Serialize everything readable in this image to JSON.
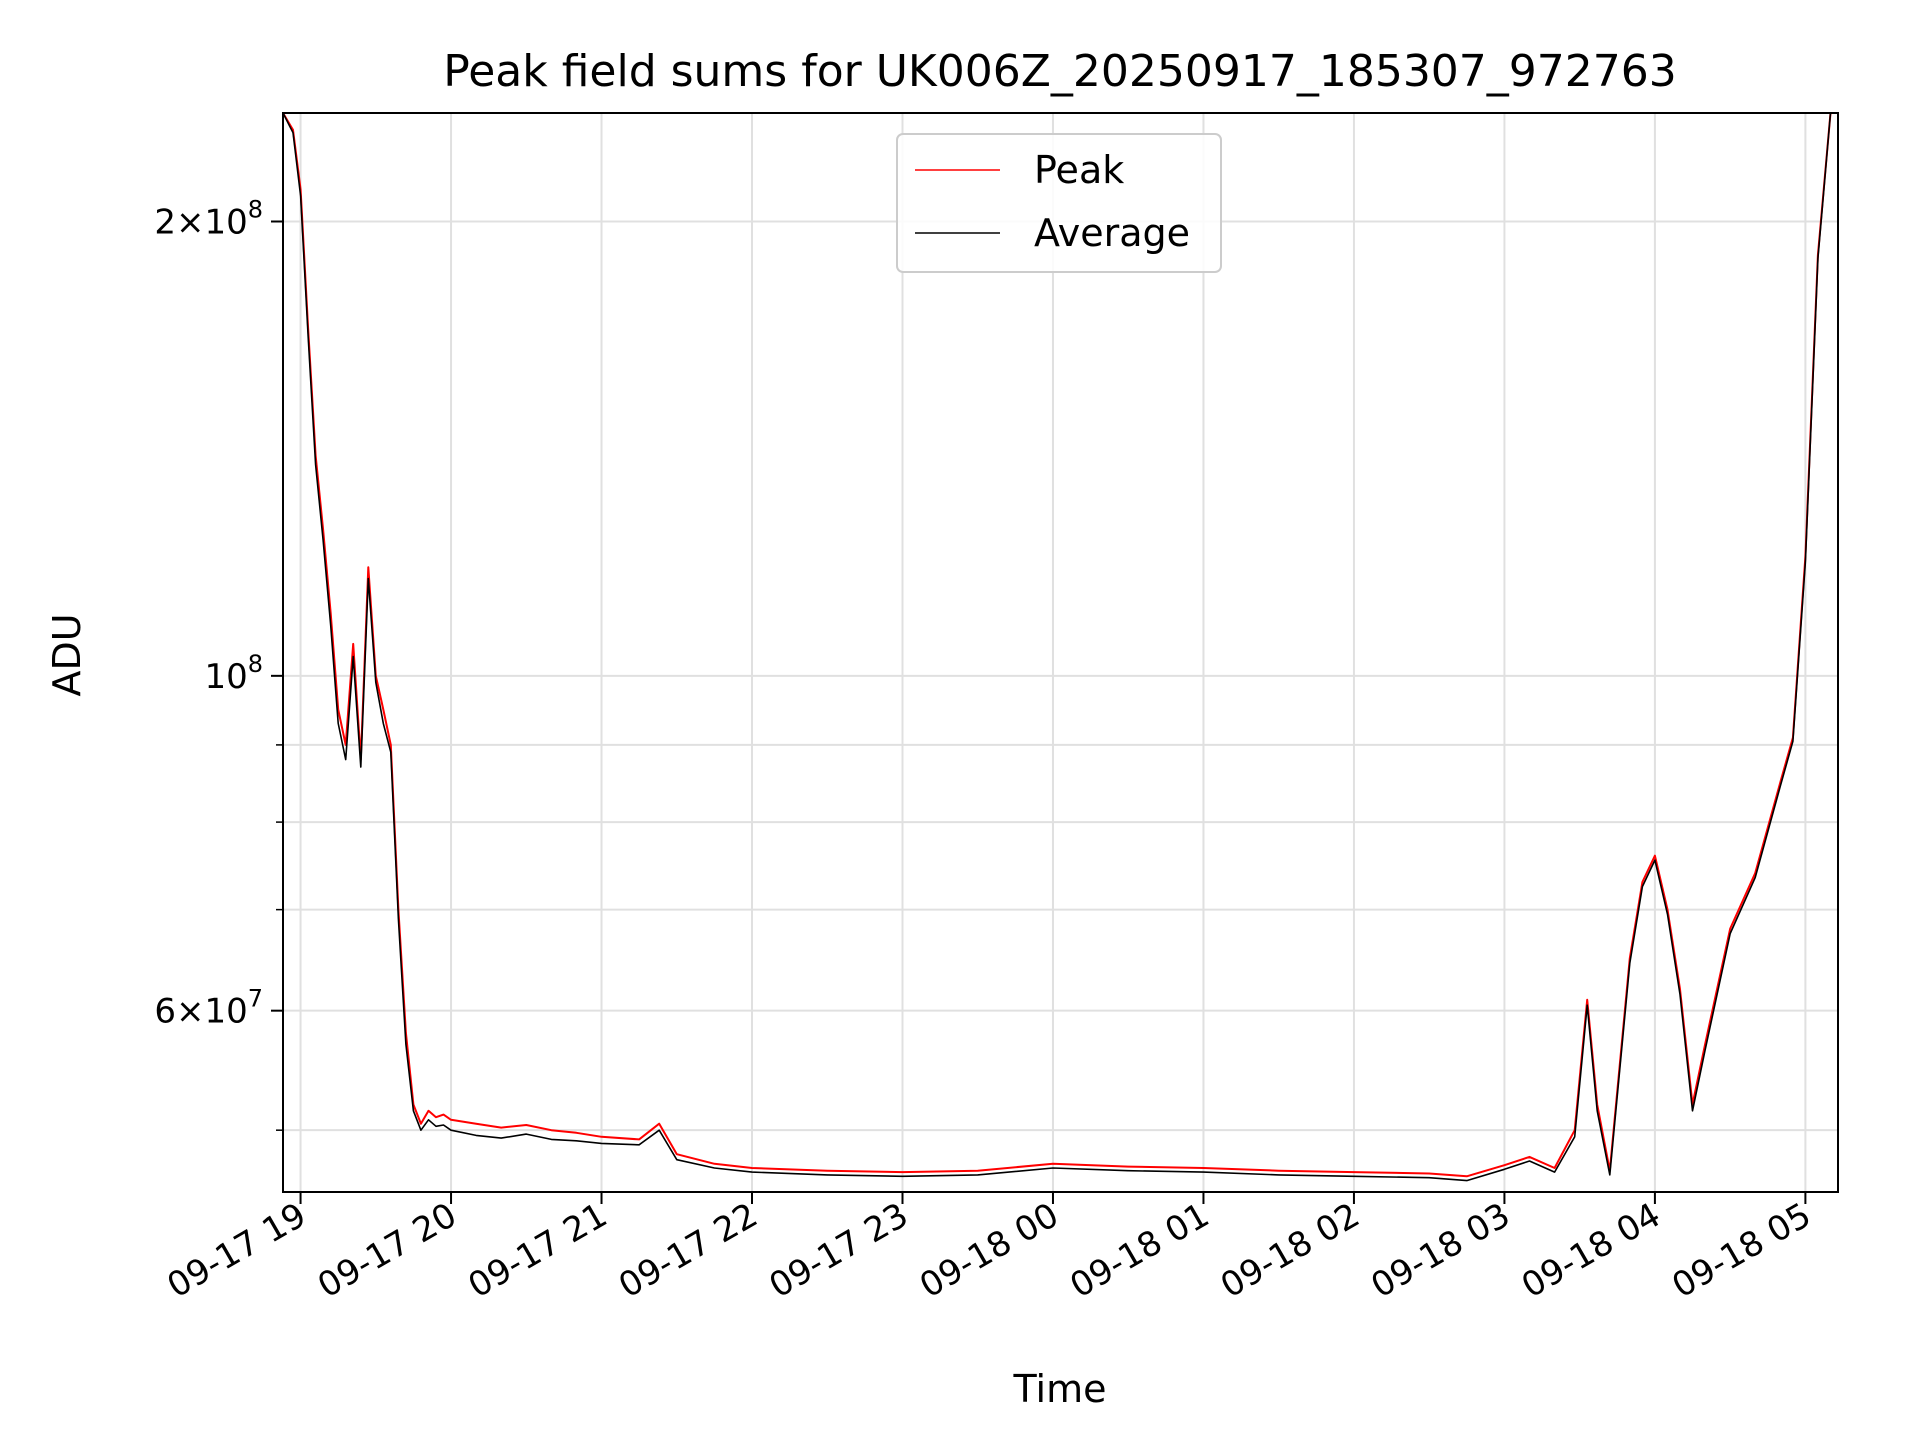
{
  "chart_data": {
    "type": "line",
    "title": "Peak field sums for UK006Z_20250917_185307_972763",
    "xlabel": "Time",
    "ylabel": "ADU",
    "y_scale": "log",
    "grid": true,
    "legend_placement": "upper center",
    "x_range": [
      "2025-09-17 18:53",
      "2025-09-18 05:13"
    ],
    "y_range": [
      45500000,
      236000000
    ],
    "x_tick_labels": [
      "09-17 19",
      "09-17 20",
      "09-17 21",
      "09-17 22",
      "09-17 23",
      "09-18 00",
      "09-18 01",
      "09-18 02",
      "09-18 03",
      "09-18 04",
      "09-18 05"
    ],
    "x_ticks": [
      "2025-09-17 19:00",
      "2025-09-17 20:00",
      "2025-09-17 21:00",
      "2025-09-17 22:00",
      "2025-09-17 23:00",
      "2025-09-18 00:00",
      "2025-09-18 01:00",
      "2025-09-18 02:00",
      "2025-09-18 03:00",
      "2025-09-18 04:00",
      "2025-09-18 05:00"
    ],
    "y_major_ticks": [
      {
        "value": 200000000,
        "mantissa": "2",
        "exponent": "8"
      },
      {
        "value": 100000000,
        "mantissa": "",
        "exponent": "8"
      },
      {
        "value": 60000000,
        "mantissa": "6",
        "exponent": "7"
      }
    ],
    "y_minor_ticks": [
      50000000,
      70000000,
      80000000,
      90000000
    ],
    "series": [
      {
        "name": "Peak",
        "color": "#ff0000",
        "x": [
          "2025-09-17 18:53",
          "2025-09-17 18:57",
          "2025-09-17 19:00",
          "2025-09-17 19:03",
          "2025-09-17 19:06",
          "2025-09-17 19:09",
          "2025-09-17 19:12",
          "2025-09-17 19:15",
          "2025-09-17 19:18",
          "2025-09-17 19:21",
          "2025-09-17 19:24",
          "2025-09-17 19:27",
          "2025-09-17 19:30",
          "2025-09-17 19:33",
          "2025-09-17 19:36",
          "2025-09-17 19:39",
          "2025-09-17 19:42",
          "2025-09-17 19:45",
          "2025-09-17 19:48",
          "2025-09-17 19:51",
          "2025-09-17 19:54",
          "2025-09-17 19:57",
          "2025-09-17 20:00",
          "2025-09-17 20:10",
          "2025-09-17 20:20",
          "2025-09-17 20:30",
          "2025-09-17 20:40",
          "2025-09-17 20:50",
          "2025-09-17 21:00",
          "2025-09-17 21:15",
          "2025-09-17 21:23",
          "2025-09-17 21:30",
          "2025-09-17 21:45",
          "2025-09-17 22:00",
          "2025-09-17 22:30",
          "2025-09-17 23:00",
          "2025-09-17 23:30",
          "2025-09-18 00:00",
          "2025-09-18 00:30",
          "2025-09-18 01:00",
          "2025-09-18 01:30",
          "2025-09-18 02:00",
          "2025-09-18 02:30",
          "2025-09-18 02:45",
          "2025-09-18 03:00",
          "2025-09-18 03:10",
          "2025-09-18 03:20",
          "2025-09-18 03:28",
          "2025-09-18 03:33",
          "2025-09-18 03:37",
          "2025-09-18 03:42",
          "2025-09-18 03:50",
          "2025-09-18 03:55",
          "2025-09-18 04:00",
          "2025-09-18 04:05",
          "2025-09-18 04:10",
          "2025-09-18 04:15",
          "2025-09-18 04:20",
          "2025-09-18 04:30",
          "2025-09-18 04:40",
          "2025-09-18 04:50",
          "2025-09-18 04:55",
          "2025-09-18 05:00",
          "2025-09-18 05:05",
          "2025-09-18 05:10"
        ],
        "values": [
          236000000,
          230000000,
          210000000,
          170000000,
          140000000,
          125000000,
          110000000,
          95000000,
          90000000,
          105000000,
          88000000,
          118000000,
          100000000,
          95000000,
          90000000,
          70000000,
          58000000,
          52000000,
          50500000,
          51500000,
          51000000,
          51200000,
          50800000,
          50500000,
          50200000,
          50400000,
          50000000,
          49800000,
          49500000,
          49300000,
          50500000,
          48200000,
          47500000,
          47200000,
          47000000,
          46900000,
          47000000,
          47500000,
          47300000,
          47200000,
          47000000,
          46900000,
          46800000,
          46600000,
          47400000,
          48000000,
          47200000,
          50000000,
          61000000,
          52000000,
          47000000,
          65000000,
          73000000,
          76000000,
          70000000,
          62000000,
          52000000,
          57000000,
          68000000,
          74000000,
          85000000,
          91000000,
          120000000,
          190000000,
          236000000
        ]
      },
      {
        "name": "Average",
        "color": "#000000",
        "x": [
          "2025-09-17 18:53",
          "2025-09-17 18:57",
          "2025-09-17 19:00",
          "2025-09-17 19:03",
          "2025-09-17 19:06",
          "2025-09-17 19:09",
          "2025-09-17 19:12",
          "2025-09-17 19:15",
          "2025-09-17 19:18",
          "2025-09-17 19:21",
          "2025-09-17 19:24",
          "2025-09-17 19:27",
          "2025-09-17 19:30",
          "2025-09-17 19:33",
          "2025-09-17 19:36",
          "2025-09-17 19:39",
          "2025-09-17 19:42",
          "2025-09-17 19:45",
          "2025-09-17 19:48",
          "2025-09-17 19:51",
          "2025-09-17 19:54",
          "2025-09-17 19:57",
          "2025-09-17 20:00",
          "2025-09-17 20:10",
          "2025-09-17 20:20",
          "2025-09-17 20:30",
          "2025-09-17 20:40",
          "2025-09-17 20:50",
          "2025-09-17 21:00",
          "2025-09-17 21:15",
          "2025-09-17 21:23",
          "2025-09-17 21:30",
          "2025-09-17 21:45",
          "2025-09-17 22:00",
          "2025-09-17 22:30",
          "2025-09-17 23:00",
          "2025-09-17 23:30",
          "2025-09-18 00:00",
          "2025-09-18 00:30",
          "2025-09-18 01:00",
          "2025-09-18 01:30",
          "2025-09-18 02:00",
          "2025-09-18 02:30",
          "2025-09-18 02:45",
          "2025-09-18 03:00",
          "2025-09-18 03:10",
          "2025-09-18 03:20",
          "2025-09-18 03:28",
          "2025-09-18 03:33",
          "2025-09-18 03:37",
          "2025-09-18 03:42",
          "2025-09-18 03:50",
          "2025-09-18 03:55",
          "2025-09-18 04:00",
          "2025-09-18 04:05",
          "2025-09-18 04:10",
          "2025-09-18 04:15",
          "2025-09-18 04:20",
          "2025-09-18 04:30",
          "2025-09-18 04:40",
          "2025-09-18 04:50",
          "2025-09-18 04:55",
          "2025-09-18 05:00",
          "2025-09-18 05:05",
          "2025-09-18 05:10"
        ],
        "values": [
          236000000,
          229000000,
          208000000,
          168000000,
          138000000,
          123000000,
          108000000,
          93000000,
          88000000,
          103000000,
          87000000,
          116000000,
          99000000,
          93000000,
          89000000,
          69000000,
          57000000,
          51500000,
          50000000,
          50800000,
          50300000,
          50400000,
          50000000,
          49600000,
          49400000,
          49700000,
          49300000,
          49200000,
          49000000,
          48900000,
          50000000,
          47800000,
          47200000,
          46900000,
          46700000,
          46600000,
          46700000,
          47200000,
          47000000,
          46900000,
          46700000,
          46600000,
          46500000,
          46300000,
          47100000,
          47700000,
          46900000,
          49500000,
          60500000,
          51500000,
          46700000,
          64500000,
          72500000,
          75500000,
          69500000,
          61500000,
          51500000,
          56500000,
          67500000,
          73500000,
          84500000,
          90500000,
          119000000,
          189000000,
          236000000
        ]
      }
    ]
  }
}
